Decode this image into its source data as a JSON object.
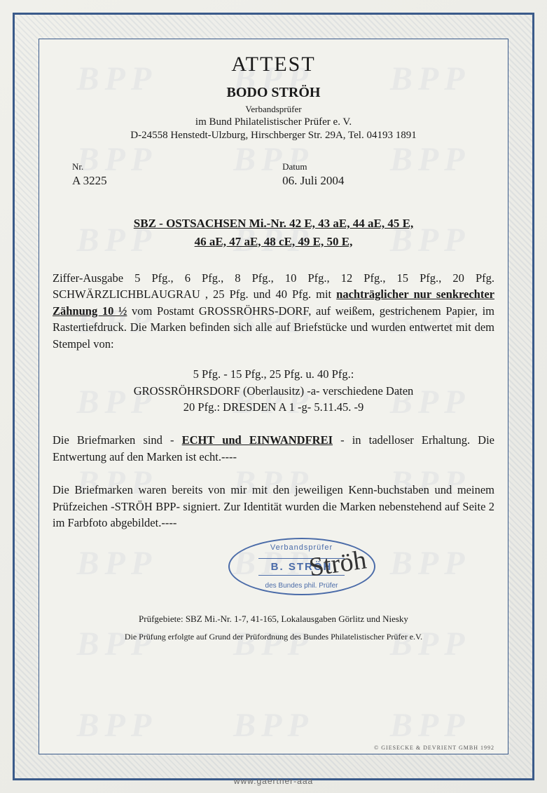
{
  "colors": {
    "border": "#3a5a8a",
    "text": "#1a1a1a",
    "stamp": "#4a6ba8",
    "background": "#f2f2ed",
    "watermark": "rgba(100, 120, 150, 0.07)"
  },
  "watermark_text": "BPP",
  "header": {
    "title": "ATTEST",
    "examiner_name": "BODO STRÖH",
    "examiner_title": "Verbandsprüfer",
    "examiner_org": "im Bund Philatelistischer Prüfer e. V.",
    "examiner_address": "D-24558 Henstedt-Ulzburg, Hirschberger Str. 29A, Tel. 04193 1891"
  },
  "meta": {
    "nr_label": "Nr.",
    "nr_value": "A 3225",
    "date_label": "Datum",
    "date_value": "06. Juli 2004"
  },
  "subject": {
    "line1": "SBZ - OSTSACHSEN  Mi.-Nr.  42 E, 43 aE, 44 aE, 45 E,",
    "line2": "46 aE, 47 aE, 48 cE, 49 E, 50 E,"
  },
  "body": {
    "para1_pre": "Ziffer-Ausgabe 5 Pfg., 6 Pfg., 8 Pfg., 10 Pfg., 12 Pfg., 15 Pfg., 20 Pfg. SCHWÄRZLICHBLAUGRAU , 25 Pfg.  und 40 Pfg. mit ",
    "para1_emph": "nachträglicher nur senkrechter Zähnung 10 ½",
    "para1_post": " vom Postamt GROSSRÖHRS-DORF, auf weißem, gestrichenem Papier, im Rastertiefdruck. Die Marken befinden sich alle auf Briefstücke und wurden entwertet mit dem Stempel von:",
    "center_line1": "5 Pfg. - 15 Pfg., 25 Pfg. u. 40 Pfg.:",
    "center_line2": "GROSSRÖHRSDORF (Oberlausitz) -a- verschiedene Daten",
    "center_line3": "20 Pfg.: DRESDEN A 1 -g- 5.11.45. -9",
    "verdict_pre": "Die Briefmarken sind - ",
    "verdict_emph": "ECHT und EINWANDFREI",
    "verdict_post": " - in tadelloser Erhaltung. Die Entwertung auf den Marken ist echt.----",
    "signed_para": "Die Briefmarken waren bereits von mir mit den jeweiligen Kenn-buchstaben und meinem Prüfzeichen -STRÖH BPP- signiert. Zur Identität wurden die Marken nebenstehend auf Seite 2 im Farbfoto abgebildet.----"
  },
  "stamp": {
    "top": "Verbandsprüfer",
    "middle": "B. STRÖH",
    "bottom": "des Bundes phil. Prüfer"
  },
  "footer": {
    "areas": "Prüfgebiete: SBZ Mi.-Nr. 1-7, 41-165, Lokalausgaben Görlitz und Niesky",
    "legal": "Die Prüfung erfolgte auf Grund der Prüfordnung des Bundes Philatelistischer Prüfer e.V.",
    "printer": "© GIESECKE & DEVRIENT GMBH 1992"
  },
  "lot": "www.gaertner-aaa"
}
